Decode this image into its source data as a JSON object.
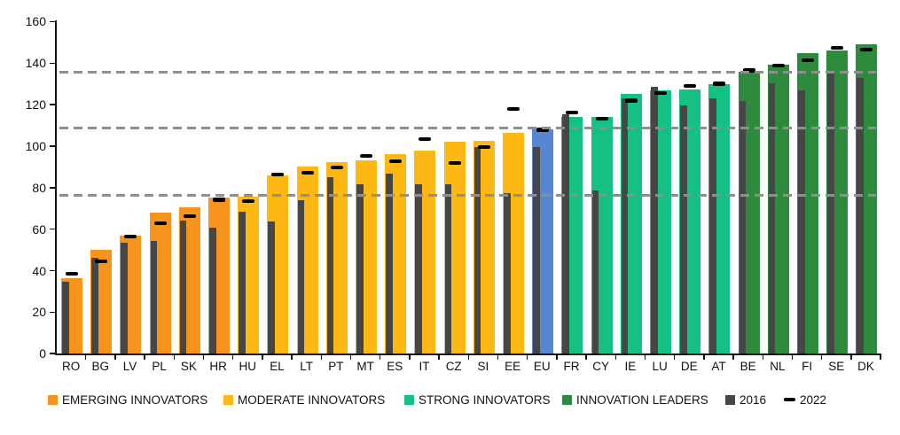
{
  "chart_data": {
    "type": "bar",
    "title": "",
    "xlabel": "",
    "ylabel": "",
    "ylim": [
      0,
      160
    ],
    "ytick_step": 20,
    "yticks": [
      0,
      20,
      40,
      60,
      80,
      100,
      120,
      140,
      160
    ],
    "legend_position": "bottom",
    "grid": "three horizontal gray dashed threshold lines, drawn over bars",
    "threshold_lines": [
      135.7,
      108.6,
      76.2
    ],
    "categories": [
      "RO",
      "BG",
      "LV",
      "PL",
      "SK",
      "HR",
      "HU",
      "EL",
      "LT",
      "PT",
      "MT",
      "ES",
      "IT",
      "CZ",
      "SI",
      "EE",
      "EU",
      "FR",
      "CY",
      "IE",
      "LU",
      "DE",
      "AT",
      "BE",
      "NL",
      "FI",
      "SE",
      "DK"
    ],
    "groups": [
      "emerging",
      "emerging",
      "emerging",
      "emerging",
      "emerging",
      "emerging",
      "moderate",
      "moderate",
      "moderate",
      "moderate",
      "moderate",
      "moderate",
      "moderate",
      "moderate",
      "moderate",
      "moderate",
      "eu",
      "strong",
      "strong",
      "strong",
      "strong",
      "strong",
      "strong",
      "leaders",
      "leaders",
      "leaders",
      "leaders",
      "leaders"
    ],
    "series": [
      {
        "name": "current-score-colored-bars",
        "values": [
          36.2,
          50.0,
          57.0,
          67.8,
          70.7,
          75.4,
          75.8,
          85.9,
          90.3,
          92.5,
          93.2,
          96.3,
          97.9,
          102.3,
          102.7,
          106.6,
          108.2,
          114.0,
          114.1,
          125.3,
          126.8,
          127.5,
          129.8,
          135.8,
          139.1,
          144.8,
          146.0,
          149.0
        ]
      },
      {
        "name": "2016",
        "values": [
          34.5,
          46.0,
          53.5,
          54.3,
          64.3,
          60.7,
          68.5,
          63.6,
          74.0,
          84.9,
          81.8,
          86.6,
          81.8,
          81.6,
          99.6,
          77.5,
          99.5,
          115.5,
          78.5,
          123.1,
          128.8,
          119.8,
          123.1,
          121.7,
          130.5,
          126.9,
          135.1,
          132.7
        ]
      },
      {
        "name": "2022",
        "values": [
          38.6,
          44.4,
          56.5,
          62.8,
          66.4,
          74.2,
          73.5,
          86.4,
          87.1,
          89.8,
          95.2,
          92.6,
          103.4,
          92.0,
          99.4,
          118.0,
          107.9,
          116.2,
          113.2,
          122.0,
          125.7,
          128.9,
          130.1,
          136.5,
          139.0,
          141.4,
          147.4,
          146.7
        ]
      }
    ],
    "colors": {
      "emerging": "#F7941E",
      "moderate": "#FDB813",
      "strong": "#14C082",
      "leaders": "#2E8B3D",
      "eu": "#5787D2",
      "bar2016": "#464646",
      "dash2022": "#000000",
      "gridline": "#8F8F8F",
      "axis": "#111111"
    },
    "legend": [
      {
        "key": "emerging",
        "label": "EMERGING INNOVATORS",
        "color": "#F7941E",
        "marker": "square"
      },
      {
        "key": "moderate",
        "label": "MODERATE INNOVATORS",
        "color": "#FDB813",
        "marker": "square"
      },
      {
        "key": "strong",
        "label": "STRONG INNOVATORS",
        "color": "#14C082",
        "marker": "square"
      },
      {
        "key": "leaders",
        "label": "INNOVATION LEADERS",
        "color": "#2E8B3D",
        "marker": "square"
      },
      {
        "key": "y2016",
        "label": "2016",
        "color": "#464646",
        "marker": "square"
      },
      {
        "key": "y2022",
        "label": "2022",
        "color": "#000000",
        "marker": "dash"
      }
    ]
  }
}
